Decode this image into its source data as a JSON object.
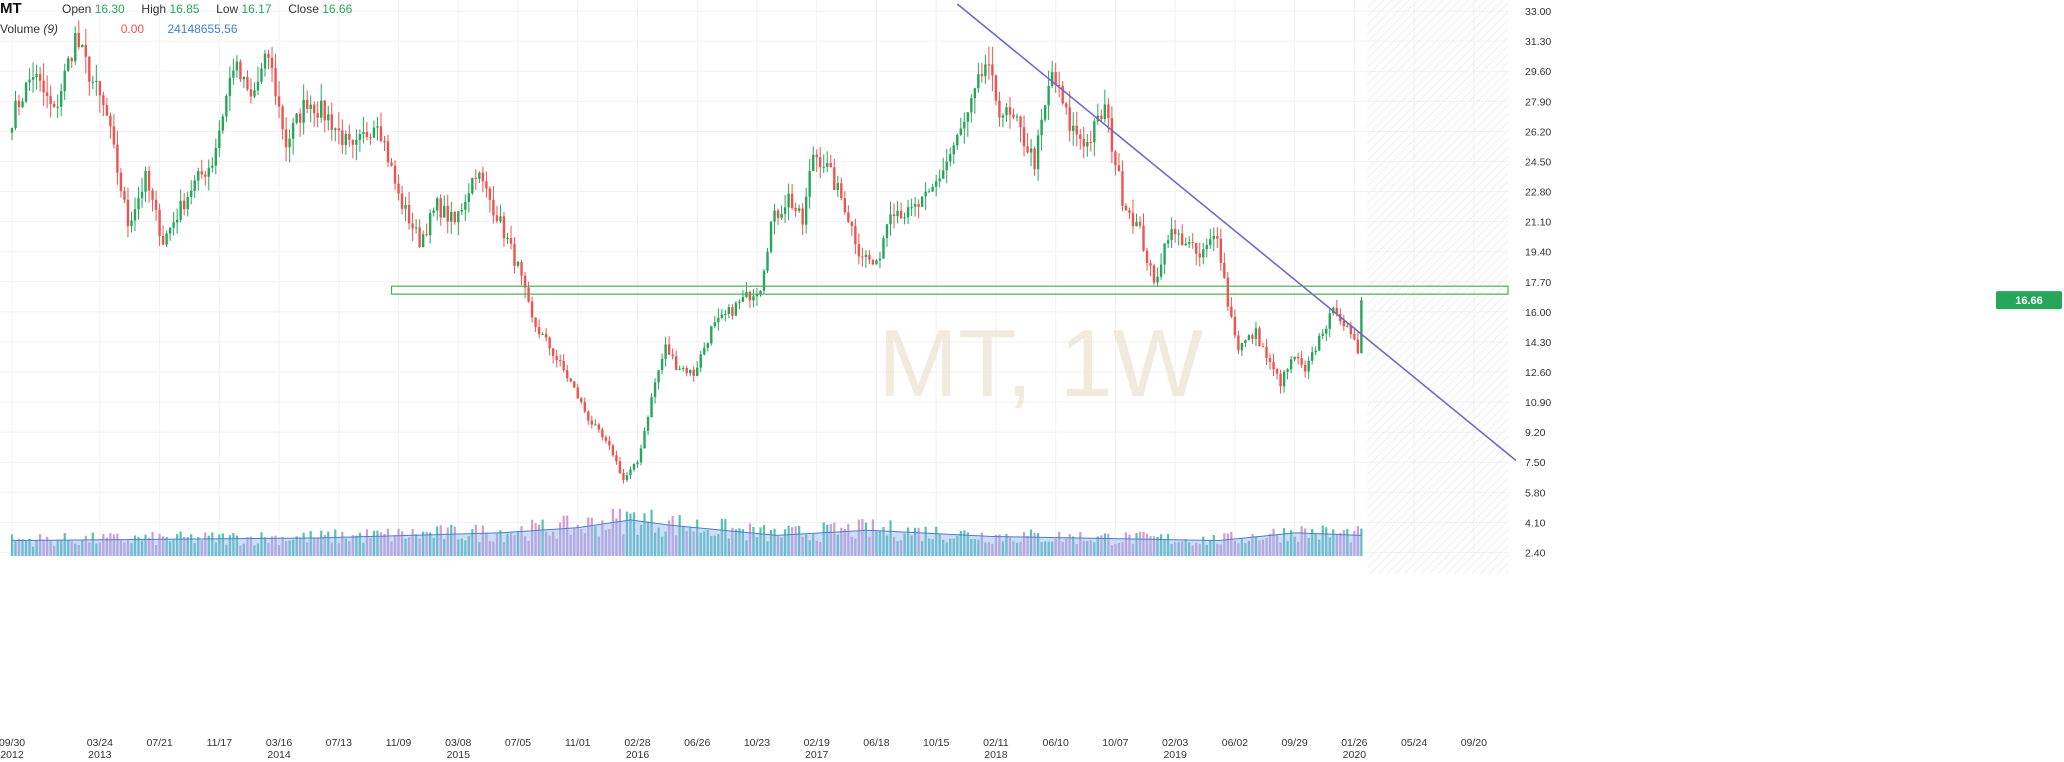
{
  "header": {
    "symbol": "MT",
    "open_label": "Open",
    "open_value": "16.30",
    "high_label": "High",
    "high_value": "16.85",
    "low_label": "Low",
    "low_value": "16.17",
    "close_label": "Close",
    "close_value": "16.66",
    "volume_label": "Volume",
    "volume_period": "(9)",
    "volume_change": "0.00",
    "volume_value": "24148655.56"
  },
  "watermark": "MT, 1W",
  "last_price_tag": "16.66",
  "colors": {
    "up": "#26a65b",
    "down": "#ef5350",
    "trendline": "#6d6bc4",
    "zone": "#4caf50",
    "price_tag": "#26a65b",
    "volume_ma": "#4a7fd0"
  },
  "chart_data": {
    "type": "candlestick",
    "interval": "1W",
    "y_axis": {
      "side": "right",
      "ticks": [
        33.0,
        31.3,
        29.6,
        27.9,
        26.2,
        24.5,
        22.8,
        21.1,
        19.4,
        17.7,
        16.0,
        14.3,
        12.6,
        10.9,
        9.2,
        7.5,
        5.8,
        4.1,
        2.4
      ],
      "range": [
        2.2,
        33.4
      ]
    },
    "x_axis": {
      "range": [
        "2012-09-30",
        "2020-12-13"
      ],
      "ticks": [
        {
          "date": "2012-09-30",
          "label": "09/30",
          "year": "2012"
        },
        {
          "date": "2013-03-24",
          "label": "03/24",
          "year": "2013"
        },
        {
          "date": "2013-07-21",
          "label": "07/21",
          "year": ""
        },
        {
          "date": "2013-11-17",
          "label": "11/17",
          "year": ""
        },
        {
          "date": "2014-03-16",
          "label": "03/16",
          "year": "2014"
        },
        {
          "date": "2014-07-13",
          "label": "07/13",
          "year": ""
        },
        {
          "date": "2014-11-09",
          "label": "11/09",
          "year": ""
        },
        {
          "date": "2015-03-08",
          "label": "03/08",
          "year": "2015"
        },
        {
          "date": "2015-07-05",
          "label": "07/05",
          "year": ""
        },
        {
          "date": "2015-11-01",
          "label": "11/01",
          "year": ""
        },
        {
          "date": "2016-02-28",
          "label": "02/28",
          "year": "2016"
        },
        {
          "date": "2016-06-26",
          "label": "06/26",
          "year": ""
        },
        {
          "date": "2016-10-23",
          "label": "10/23",
          "year": ""
        },
        {
          "date": "2017-02-19",
          "label": "02/19",
          "year": "2017"
        },
        {
          "date": "2017-06-18",
          "label": "06/18",
          "year": ""
        },
        {
          "date": "2017-10-15",
          "label": "10/15",
          "year": ""
        },
        {
          "date": "2018-02-11",
          "label": "02/11",
          "year": "2018"
        },
        {
          "date": "2018-06-10",
          "label": "06/10",
          "year": ""
        },
        {
          "date": "2018-10-07",
          "label": "10/07",
          "year": ""
        },
        {
          "date": "2019-02-03",
          "label": "02/03",
          "year": "2019"
        },
        {
          "date": "2019-06-02",
          "label": "06/02",
          "year": ""
        },
        {
          "date": "2019-09-29",
          "label": "09/29",
          "year": ""
        },
        {
          "date": "2020-01-26",
          "label": "01/26",
          "year": "2020"
        },
        {
          "date": "2020-05-24",
          "label": "05/24",
          "year": ""
        },
        {
          "date": "2020-09-20",
          "label": "09/20",
          "year": ""
        }
      ]
    },
    "price_anchors": [
      [
        "2012-09-30",
        27.0
      ],
      [
        "2012-11-11",
        29.5
      ],
      [
        "2012-12-23",
        27.2
      ],
      [
        "2013-02-03",
        31.5
      ],
      [
        "2013-02-24",
        30.0
      ],
      [
        "2013-04-07",
        27.0
      ],
      [
        "2013-05-19",
        21.0
      ],
      [
        "2013-06-23",
        23.5
      ],
      [
        "2013-07-28",
        20.0
      ],
      [
        "2013-09-22",
        23.0
      ],
      [
        "2013-11-03",
        24.5
      ],
      [
        "2013-12-15",
        30.0
      ],
      [
        "2014-01-19",
        28.0
      ],
      [
        "2014-02-23",
        30.5
      ],
      [
        "2014-03-30",
        25.5
      ],
      [
        "2014-05-11",
        28.0
      ],
      [
        "2014-06-22",
        27.0
      ],
      [
        "2014-08-10",
        25.0
      ],
      [
        "2014-09-28",
        27.0
      ],
      [
        "2014-11-09",
        22.5
      ],
      [
        "2014-12-21",
        20.0
      ],
      [
        "2015-01-25",
        22.0
      ],
      [
        "2015-03-01",
        21.0
      ],
      [
        "2015-04-12",
        24.0
      ],
      [
        "2015-05-24",
        21.5
      ],
      [
        "2015-07-05",
        18.5
      ],
      [
        "2015-08-02",
        15.5
      ],
      [
        "2015-09-06",
        14.0
      ],
      [
        "2015-10-18",
        12.0
      ],
      [
        "2015-11-22",
        10.0
      ],
      [
        "2016-01-10",
        8.0
      ],
      [
        "2016-01-31",
        6.5
      ],
      [
        "2016-02-28",
        7.5
      ],
      [
        "2016-04-03",
        12.0
      ],
      [
        "2016-04-24",
        14.0
      ],
      [
        "2016-05-15",
        13.0
      ],
      [
        "2016-06-19",
        12.5
      ],
      [
        "2016-07-24",
        15.0
      ],
      [
        "2016-09-18",
        16.5
      ],
      [
        "2016-10-30",
        17.5
      ],
      [
        "2016-11-20",
        21.0
      ],
      [
        "2016-12-25",
        22.5
      ],
      [
        "2017-01-22",
        21.0
      ],
      [
        "2017-02-12",
        25.0
      ],
      [
        "2017-03-05",
        24.5
      ],
      [
        "2017-04-16",
        22.0
      ],
      [
        "2017-05-14",
        19.5
      ],
      [
        "2017-06-18",
        18.5
      ],
      [
        "2017-07-16",
        22.0
      ],
      [
        "2017-08-20",
        21.5
      ],
      [
        "2017-10-01",
        22.5
      ],
      [
        "2017-11-05",
        24.5
      ],
      [
        "2017-12-17",
        27.0
      ],
      [
        "2018-01-21",
        30.0
      ],
      [
        "2018-02-18",
        27.5
      ],
      [
        "2018-03-25",
        26.5
      ],
      [
        "2018-04-29",
        24.5
      ],
      [
        "2018-06-03",
        29.5
      ],
      [
        "2018-07-08",
        26.5
      ],
      [
        "2018-08-12",
        25.5
      ],
      [
        "2018-09-16",
        27.5
      ],
      [
        "2018-10-21",
        22.5
      ],
      [
        "2018-11-25",
        20.5
      ],
      [
        "2018-12-23",
        17.5
      ],
      [
        "2019-01-20",
        20.5
      ],
      [
        "2019-02-24",
        20.0
      ],
      [
        "2019-03-24",
        19.0
      ],
      [
        "2019-04-28",
        20.5
      ],
      [
        "2019-05-19",
        16.5
      ],
      [
        "2019-06-09",
        14.0
      ],
      [
        "2019-07-14",
        14.8
      ],
      [
        "2019-08-11",
        13.0
      ],
      [
        "2019-09-01",
        12.0
      ],
      [
        "2019-09-29",
        13.5
      ],
      [
        "2019-10-20",
        12.5
      ],
      [
        "2019-11-24",
        15.0
      ],
      [
        "2019-12-22",
        16.2
      ],
      [
        "2020-01-19",
        14.5
      ],
      [
        "2020-02-02",
        13.8
      ],
      [
        "2020-02-09",
        16.66
      ]
    ],
    "volume_profile": [
      [
        "2012-09-30",
        0.3
      ],
      [
        "2014-06-01",
        0.35
      ],
      [
        "2015-06-01",
        0.45
      ],
      [
        "2015-11-01",
        0.55
      ],
      [
        "2016-02-14",
        0.7
      ],
      [
        "2016-05-01",
        0.6
      ],
      [
        "2016-12-01",
        0.4
      ],
      [
        "2017-06-01",
        0.5
      ],
      [
        "2018-02-01",
        0.38
      ],
      [
        "2019-05-01",
        0.3
      ],
      [
        "2019-10-01",
        0.45
      ],
      [
        "2020-02-09",
        0.4
      ]
    ],
    "last_candle": {
      "open": 16.3,
      "high": 16.85,
      "low": 16.17,
      "close": 16.66
    },
    "support_zone": {
      "from_date": "2014-10-26",
      "to_date": "2020-12-13",
      "low": 17.0,
      "high": 17.45
    },
    "trendline": {
      "start": [
        "2017-11-26",
        33.4
      ],
      "end": [
        "2020-12-13",
        7.6
      ]
    },
    "grid": true
  }
}
